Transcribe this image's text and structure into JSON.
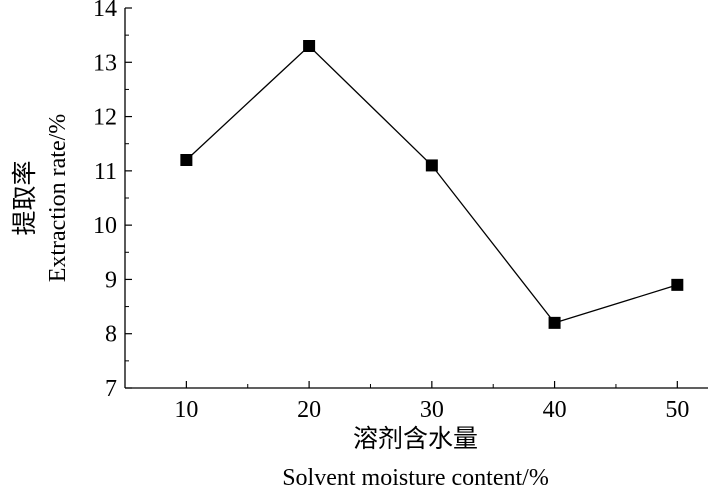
{
  "chart_data": {
    "type": "line",
    "x": [
      10,
      20,
      30,
      40,
      50
    ],
    "series": [
      {
        "values": [
          11.2,
          13.3,
          11.1,
          8.2,
          8.9
        ]
      }
    ],
    "xlim": [
      5,
      52.5
    ],
    "ylim": [
      7,
      14
    ],
    "xticks": [
      "10",
      "20",
      "30",
      "40",
      "50"
    ],
    "yticks": [
      "7",
      "8",
      "9",
      "10",
      "11",
      "12",
      "13",
      "14"
    ],
    "xlabel_cn": "溶剂含水量",
    "xlabel": "Solvent moisture content/%",
    "ylabel_cn": "提取率",
    "ylabel": "Extraction rate/%",
    "marker": "square",
    "grid": false,
    "colors": {
      "line": "#000000",
      "marker": "#000000"
    }
  }
}
